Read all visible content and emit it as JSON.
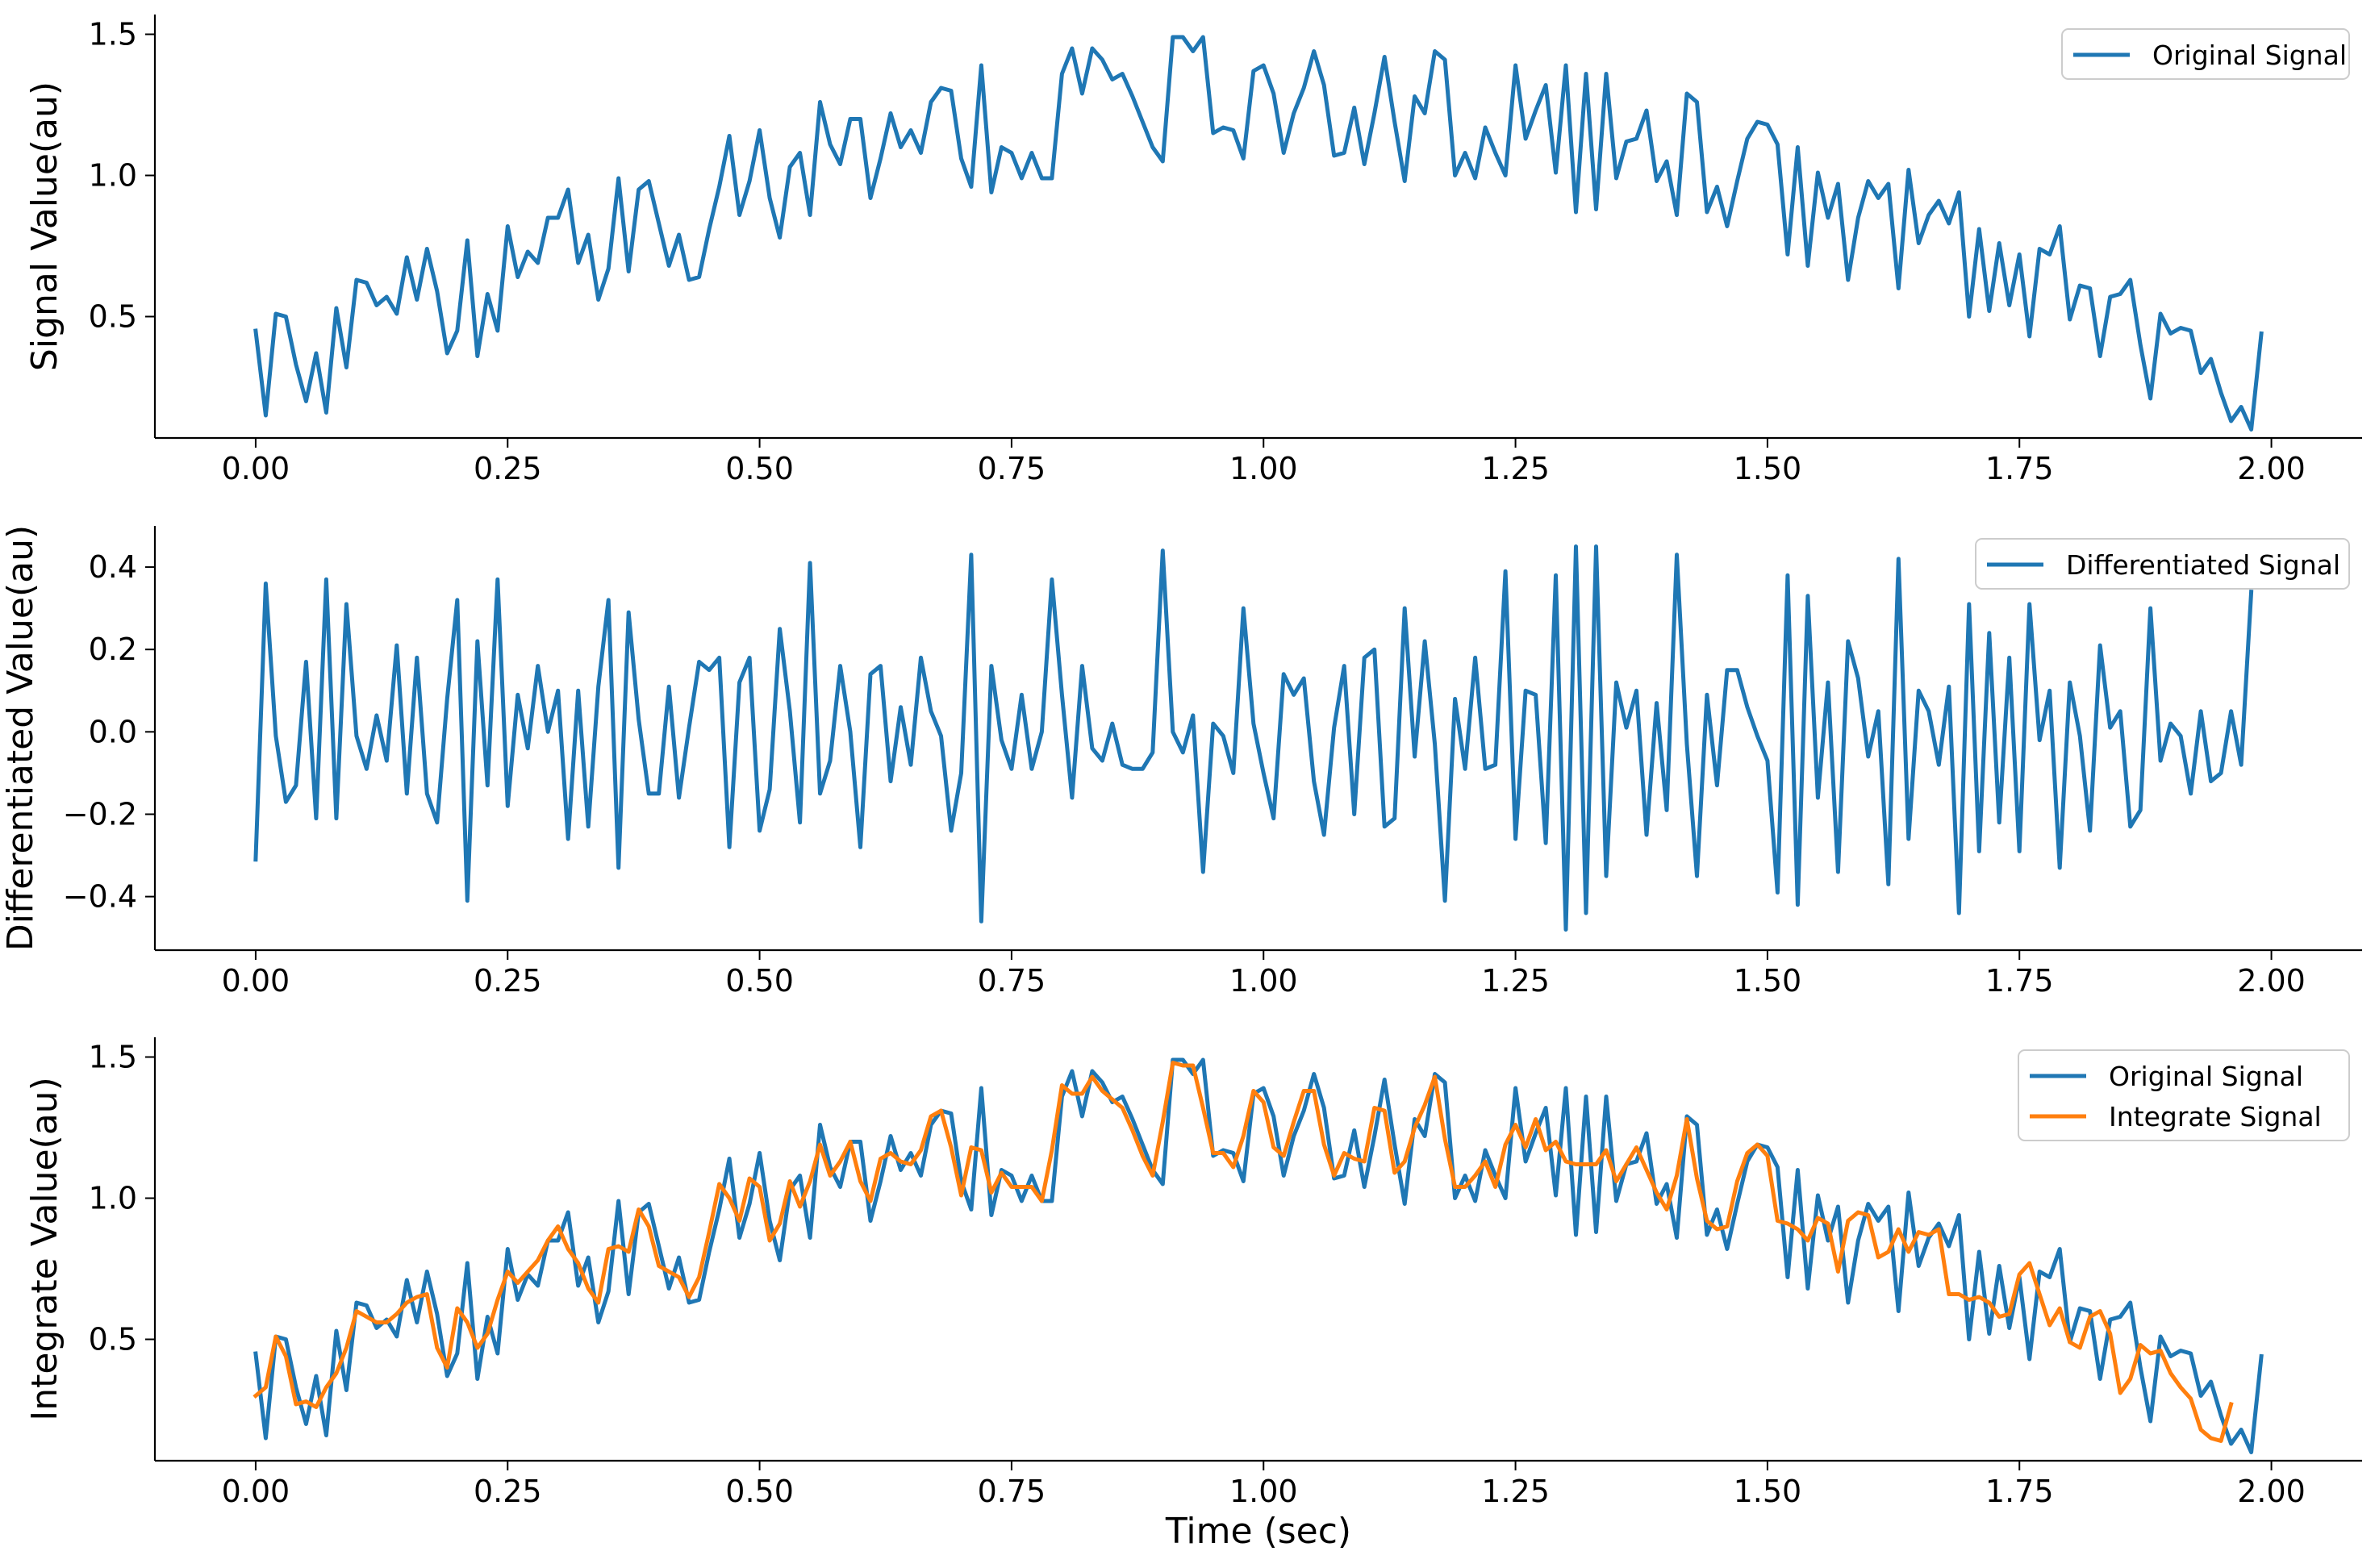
{
  "figure": {
    "xlabel": "Time (sec)",
    "colors": {
      "blue": "#1f77b4",
      "orange": "#ff7f0e"
    }
  },
  "chart_data": [
    {
      "id": "original",
      "type": "line",
      "title": "",
      "xlabel": "",
      "ylabel": "Signal Value(au)",
      "xlim": [
        -0.1,
        2.09
      ],
      "ylim": [
        0.07,
        1.57
      ],
      "xticks": [
        0.0,
        0.25,
        0.5,
        0.75,
        1.0,
        1.25,
        1.5,
        1.75,
        2.0
      ],
      "xtick_labels": [
        "0.00",
        "0.25",
        "0.50",
        "0.75",
        "1.00",
        "1.25",
        "1.50",
        "1.75",
        "2.00"
      ],
      "yticks": [
        0.5,
        1.0,
        1.5
      ],
      "ytick_labels": [
        "0.5",
        "1.0",
        "1.5"
      ],
      "legend_position": "top-right",
      "x_start": 0.0,
      "x_step": 0.01,
      "series": [
        {
          "name": "Original Signal",
          "color": "#1f77b4",
          "values": [
            0.45,
            0.15,
            0.51,
            0.5,
            0.33,
            0.2,
            0.37,
            0.16,
            0.53,
            0.32,
            0.63,
            0.62,
            0.54,
            0.57,
            0.51,
            0.71,
            0.56,
            0.74,
            0.59,
            0.37,
            0.45,
            0.77,
            0.36,
            0.58,
            0.45,
            0.82,
            0.64,
            0.73,
            0.69,
            0.85,
            0.85,
            0.95,
            0.69,
            0.79,
            0.56,
            0.67,
            0.99,
            0.66,
            0.95,
            0.98,
            0.83,
            0.68,
            0.79,
            0.63,
            0.64,
            0.81,
            0.96,
            1.14,
            0.86,
            0.98,
            1.16,
            0.92,
            0.78,
            1.03,
            1.08,
            0.86,
            1.26,
            1.11,
            1.04,
            1.2,
            1.2,
            0.92,
            1.06,
            1.22,
            1.1,
            1.16,
            1.08,
            1.26,
            1.31,
            1.3,
            1.06,
            0.96,
            1.39,
            0.94,
            1.1,
            1.08,
            0.99,
            1.08,
            0.99,
            0.99,
            1.36,
            1.45,
            1.29,
            1.45,
            1.41,
            1.34,
            1.36,
            1.28,
            1.19,
            1.1,
            1.05,
            1.49,
            1.49,
            1.44,
            1.49,
            1.15,
            1.17,
            1.16,
            1.06,
            1.37,
            1.39,
            1.29,
            1.08,
            1.22,
            1.31,
            1.44,
            1.32,
            1.07,
            1.08,
            1.24,
            1.04,
            1.22,
            1.42,
            1.19,
            0.98,
            1.28,
            1.22,
            1.44,
            1.41,
            1.0,
            1.08,
            0.99,
            1.17,
            1.08,
            1.0,
            1.39,
            1.13,
            1.23,
            1.32,
            1.01,
            1.39,
            0.87,
            1.36,
            0.88,
            1.36,
            0.99,
            1.12,
            1.13,
            1.23,
            0.98,
            1.05,
            0.86,
            1.29,
            1.26,
            0.87,
            0.96,
            0.82,
            0.98,
            1.13,
            1.19,
            1.18,
            1.11,
            0.72,
            1.1,
            0.68,
            1.01,
            0.85,
            0.97,
            0.63,
            0.85,
            0.98,
            0.92,
            0.97,
            0.6,
            1.02,
            0.76,
            0.86,
            0.91,
            0.83,
            0.94,
            0.5,
            0.81,
            0.52,
            0.76,
            0.54,
            0.72,
            0.43,
            0.74,
            0.72,
            0.82,
            0.49,
            0.61,
            0.6,
            0.36,
            0.57,
            0.58,
            0.63,
            0.4,
            0.21,
            0.51,
            0.44,
            0.46,
            0.45,
            0.3,
            0.35,
            0.23,
            0.13,
            0.18,
            0.1,
            0.44
          ]
        }
      ]
    },
    {
      "id": "differentiated",
      "type": "line",
      "title": "",
      "xlabel": "",
      "ylabel": "Differentiated Value(au)",
      "xlim": [
        -0.1,
        2.09
      ],
      "ylim": [
        -0.53,
        0.5
      ],
      "xticks": [
        0.0,
        0.25,
        0.5,
        0.75,
        1.0,
        1.25,
        1.5,
        1.75,
        2.0
      ],
      "xtick_labels": [
        "0.00",
        "0.25",
        "0.50",
        "0.75",
        "1.00",
        "1.25",
        "1.50",
        "1.75",
        "2.00"
      ],
      "yticks": [
        -0.4,
        -0.2,
        0.0,
        0.2,
        0.4
      ],
      "ytick_labels": [
        "−0.4",
        "−0.2",
        "0.0",
        "0.2",
        "0.4"
      ],
      "legend_position": "top-right",
      "x_start": 0.0,
      "x_step": 0.01,
      "series": [
        {
          "name": "Differentiated Signal",
          "color": "#1f77b4",
          "values": [
            -0.31,
            0.36,
            -0.01,
            -0.17,
            -0.13,
            0.17,
            -0.21,
            0.37,
            -0.21,
            0.31,
            -0.01,
            -0.09,
            0.04,
            -0.07,
            0.21,
            -0.15,
            0.18,
            -0.15,
            -0.22,
            0.08,
            0.32,
            -0.41,
            0.22,
            -0.13,
            0.37,
            -0.18,
            0.09,
            -0.04,
            0.16,
            0.0,
            0.1,
            -0.26,
            0.1,
            -0.23,
            0.11,
            0.32,
            -0.33,
            0.29,
            0.03,
            -0.15,
            -0.15,
            0.11,
            -0.16,
            0.01,
            0.17,
            0.15,
            0.18,
            -0.28,
            0.12,
            0.18,
            -0.24,
            -0.14,
            0.25,
            0.05,
            -0.22,
            0.41,
            -0.15,
            -0.07,
            0.16,
            0.0,
            -0.28,
            0.14,
            0.16,
            -0.12,
            0.06,
            -0.08,
            0.18,
            0.05,
            -0.01,
            -0.24,
            -0.1,
            0.43,
            -0.46,
            0.16,
            -0.02,
            -0.09,
            0.09,
            -0.09,
            0.0,
            0.37,
            0.09,
            -0.16,
            0.16,
            -0.04,
            -0.07,
            0.02,
            -0.08,
            -0.09,
            -0.09,
            -0.05,
            0.44,
            0.0,
            -0.05,
            0.04,
            -0.34,
            0.02,
            -0.01,
            -0.1,
            0.3,
            0.02,
            -0.1,
            -0.21,
            0.14,
            0.09,
            0.13,
            -0.12,
            -0.25,
            0.01,
            0.16,
            -0.2,
            0.18,
            0.2,
            -0.23,
            -0.21,
            0.3,
            -0.06,
            0.22,
            -0.03,
            -0.41,
            0.08,
            -0.09,
            0.18,
            -0.09,
            -0.08,
            0.39,
            -0.26,
            0.1,
            0.09,
            -0.27,
            0.38,
            -0.48,
            0.45,
            -0.44,
            0.45,
            -0.35,
            0.12,
            0.01,
            0.1,
            -0.25,
            0.07,
            -0.19,
            0.43,
            -0.03,
            -0.35,
            0.09,
            -0.13,
            0.15,
            0.15,
            0.06,
            -0.01,
            -0.07,
            -0.39,
            0.38,
            -0.42,
            0.33,
            -0.16,
            0.12,
            -0.34,
            0.22,
            0.13,
            -0.06,
            0.05,
            -0.37,
            0.42,
            -0.26,
            0.1,
            0.05,
            -0.08,
            0.11,
            -0.44,
            0.31,
            -0.29,
            0.24,
            -0.22,
            0.18,
            -0.29,
            0.31,
            -0.02,
            0.1,
            -0.33,
            0.12,
            -0.01,
            -0.24,
            0.21,
            0.01,
            0.05,
            -0.23,
            -0.19,
            0.3,
            -0.07,
            0.02,
            -0.01,
            -0.15,
            0.05,
            -0.12,
            -0.1,
            0.05,
            -0.08,
            0.34
          ]
        }
      ]
    },
    {
      "id": "integrate",
      "type": "line",
      "title": "",
      "xlabel": "Time (sec)",
      "ylabel": "Integrate Value(au)",
      "xlim": [
        -0.1,
        2.09
      ],
      "ylim": [
        0.07,
        1.57
      ],
      "xticks": [
        0.0,
        0.25,
        0.5,
        0.75,
        1.0,
        1.25,
        1.5,
        1.75,
        2.0
      ],
      "xtick_labels": [
        "0.00",
        "0.25",
        "0.50",
        "0.75",
        "1.00",
        "1.25",
        "1.50",
        "1.75",
        "2.00"
      ],
      "yticks": [
        0.5,
        1.0,
        1.5
      ],
      "ytick_labels": [
        "0.5",
        "1.0",
        "1.5"
      ],
      "legend_position": "top-right",
      "x_start": 0.0,
      "x_step": 0.01,
      "series": [
        {
          "name": "Original Signal",
          "color": "#1f77b4",
          "values": [
            0.45,
            0.15,
            0.51,
            0.5,
            0.33,
            0.2,
            0.37,
            0.16,
            0.53,
            0.32,
            0.63,
            0.62,
            0.54,
            0.57,
            0.51,
            0.71,
            0.56,
            0.74,
            0.59,
            0.37,
            0.45,
            0.77,
            0.36,
            0.58,
            0.45,
            0.82,
            0.64,
            0.73,
            0.69,
            0.85,
            0.85,
            0.95,
            0.69,
            0.79,
            0.56,
            0.67,
            0.99,
            0.66,
            0.95,
            0.98,
            0.83,
            0.68,
            0.79,
            0.63,
            0.64,
            0.81,
            0.96,
            1.14,
            0.86,
            0.98,
            1.16,
            0.92,
            0.78,
            1.03,
            1.08,
            0.86,
            1.26,
            1.11,
            1.04,
            1.2,
            1.2,
            0.92,
            1.06,
            1.22,
            1.1,
            1.16,
            1.08,
            1.26,
            1.31,
            1.3,
            1.06,
            0.96,
            1.39,
            0.94,
            1.1,
            1.08,
            0.99,
            1.08,
            0.99,
            0.99,
            1.36,
            1.45,
            1.29,
            1.45,
            1.41,
            1.34,
            1.36,
            1.28,
            1.19,
            1.1,
            1.05,
            1.49,
            1.49,
            1.44,
            1.49,
            1.15,
            1.17,
            1.16,
            1.06,
            1.37,
            1.39,
            1.29,
            1.08,
            1.22,
            1.31,
            1.44,
            1.32,
            1.07,
            1.08,
            1.24,
            1.04,
            1.22,
            1.42,
            1.19,
            0.98,
            1.28,
            1.22,
            1.44,
            1.41,
            1.0,
            1.08,
            0.99,
            1.17,
            1.08,
            1.0,
            1.39,
            1.13,
            1.23,
            1.32,
            1.01,
            1.39,
            0.87,
            1.36,
            0.88,
            1.36,
            0.99,
            1.12,
            1.13,
            1.23,
            0.98,
            1.05,
            0.86,
            1.29,
            1.26,
            0.87,
            0.96,
            0.82,
            0.98,
            1.13,
            1.19,
            1.18,
            1.11,
            0.72,
            1.1,
            0.68,
            1.01,
            0.85,
            0.97,
            0.63,
            0.85,
            0.98,
            0.92,
            0.97,
            0.6,
            1.02,
            0.76,
            0.86,
            0.91,
            0.83,
            0.94,
            0.5,
            0.81,
            0.52,
            0.76,
            0.54,
            0.72,
            0.43,
            0.74,
            0.72,
            0.82,
            0.49,
            0.61,
            0.6,
            0.36,
            0.57,
            0.58,
            0.63,
            0.4,
            0.21,
            0.51,
            0.44,
            0.46,
            0.45,
            0.3,
            0.35,
            0.23,
            0.13,
            0.18,
            0.1,
            0.44
          ]
        },
        {
          "name": "Integrate Signal",
          "color": "#ff7f0e",
          "values": [
            0.3,
            0.33,
            0.51,
            0.44,
            0.27,
            0.28,
            0.26,
            0.33,
            0.38,
            0.47,
            0.6,
            0.58,
            0.56,
            0.56,
            0.59,
            0.63,
            0.65,
            0.66,
            0.47,
            0.4,
            0.61,
            0.56,
            0.47,
            0.52,
            0.64,
            0.74,
            0.7,
            0.74,
            0.78,
            0.85,
            0.9,
            0.82,
            0.77,
            0.68,
            0.63,
            0.82,
            0.83,
            0.81,
            0.96,
            0.9,
            0.76,
            0.74,
            0.72,
            0.65,
            0.72,
            0.88,
            1.05,
            1.0,
            0.92,
            1.07,
            1.04,
            0.85,
            0.91,
            1.06,
            0.97,
            1.06,
            1.19,
            1.08,
            1.13,
            1.2,
            1.06,
            0.99,
            1.14,
            1.16,
            1.13,
            1.12,
            1.17,
            1.29,
            1.31,
            1.18,
            1.01,
            1.18,
            1.17,
            1.02,
            1.09,
            1.04,
            1.04,
            1.04,
            0.99,
            1.17,
            1.4,
            1.37,
            1.37,
            1.43,
            1.38,
            1.35,
            1.32,
            1.24,
            1.15,
            1.08,
            1.27,
            1.48,
            1.47,
            1.47,
            1.32,
            1.16,
            1.16,
            1.11,
            1.22,
            1.38,
            1.34,
            1.18,
            1.15,
            1.27,
            1.38,
            1.38,
            1.19,
            1.08,
            1.16,
            1.14,
            1.13,
            1.32,
            1.31,
            1.09,
            1.13,
            1.25,
            1.33,
            1.43,
            1.21,
            1.04,
            1.04,
            1.08,
            1.13,
            1.04,
            1.19,
            1.26,
            1.18,
            1.28,
            1.17,
            1.2,
            1.13,
            1.12,
            1.12,
            1.12,
            1.17,
            1.06,
            1.12,
            1.18,
            1.1,
            1.02,
            0.96,
            1.08,
            1.28,
            1.07,
            0.92,
            0.89,
            0.9,
            1.06,
            1.16,
            1.19,
            1.15,
            0.92,
            0.91,
            0.89,
            0.85,
            0.93,
            0.91,
            0.74,
            0.92,
            0.95,
            0.94,
            0.79,
            0.81,
            0.89,
            0.81,
            0.88,
            0.87,
            0.89,
            0.66,
            0.66,
            0.64,
            0.65,
            0.63,
            0.58,
            0.59,
            0.73,
            0.77,
            0.66,
            0.55,
            0.61,
            0.49,
            0.47,
            0.58,
            0.6,
            0.52,
            0.31,
            0.36,
            0.48,
            0.45,
            0.46,
            0.38,
            0.33,
            0.29,
            0.18,
            0.15,
            0.14,
            0.27
          ]
        }
      ]
    }
  ]
}
